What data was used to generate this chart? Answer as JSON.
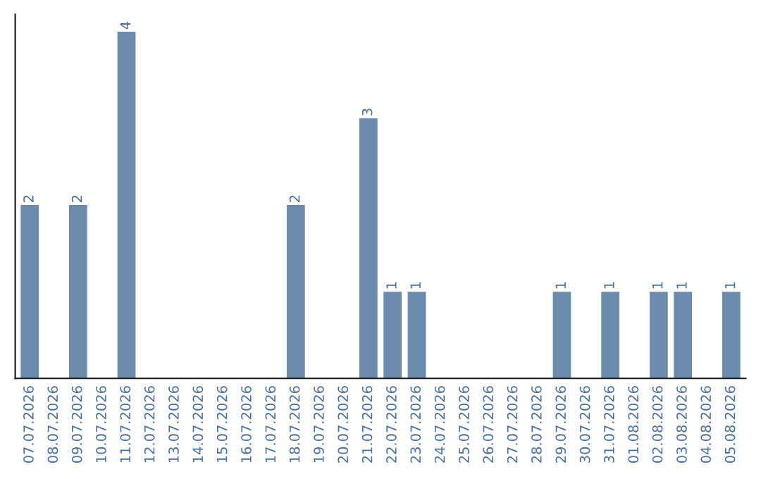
{
  "chart_data": {
    "type": "bar",
    "categories": [
      "07.07.2026",
      "08.07.2026",
      "09.07.2026",
      "10.07.2026",
      "11.07.2026",
      "12.07.2026",
      "13.07.2026",
      "14.07.2026",
      "15.07.2026",
      "16.07.2026",
      "17.07.2026",
      "18.07.2026",
      "19.07.2026",
      "20.07.2026",
      "21.07.2026",
      "22.07.2026",
      "23.07.2026",
      "24.07.2026",
      "25.07.2026",
      "26.07.2026",
      "27.07.2026",
      "28.07.2026",
      "29.07.2026",
      "30.07.2026",
      "31.07.2026",
      "01.08.2026",
      "02.08.2026",
      "03.08.2026",
      "04.08.2026",
      "05.08.2026"
    ],
    "values": [
      2,
      0,
      2,
      0,
      4,
      0,
      0,
      0,
      0,
      0,
      0,
      2,
      0,
      0,
      3,
      1,
      1,
      0,
      0,
      0,
      0,
      0,
      1,
      0,
      1,
      0,
      1,
      1,
      0,
      1
    ],
    "value_labels": [
      "2",
      null,
      "2",
      null,
      "4",
      null,
      null,
      null,
      null,
      null,
      null,
      "2",
      null,
      null,
      "3",
      "1",
      "1",
      null,
      null,
      null,
      null,
      null,
      "1",
      null,
      "1",
      null,
      "1",
      "1",
      null,
      "1"
    ],
    "color": "#6b8cad",
    "tick_labels": "x",
    "grid": false,
    "legend": false
  }
}
